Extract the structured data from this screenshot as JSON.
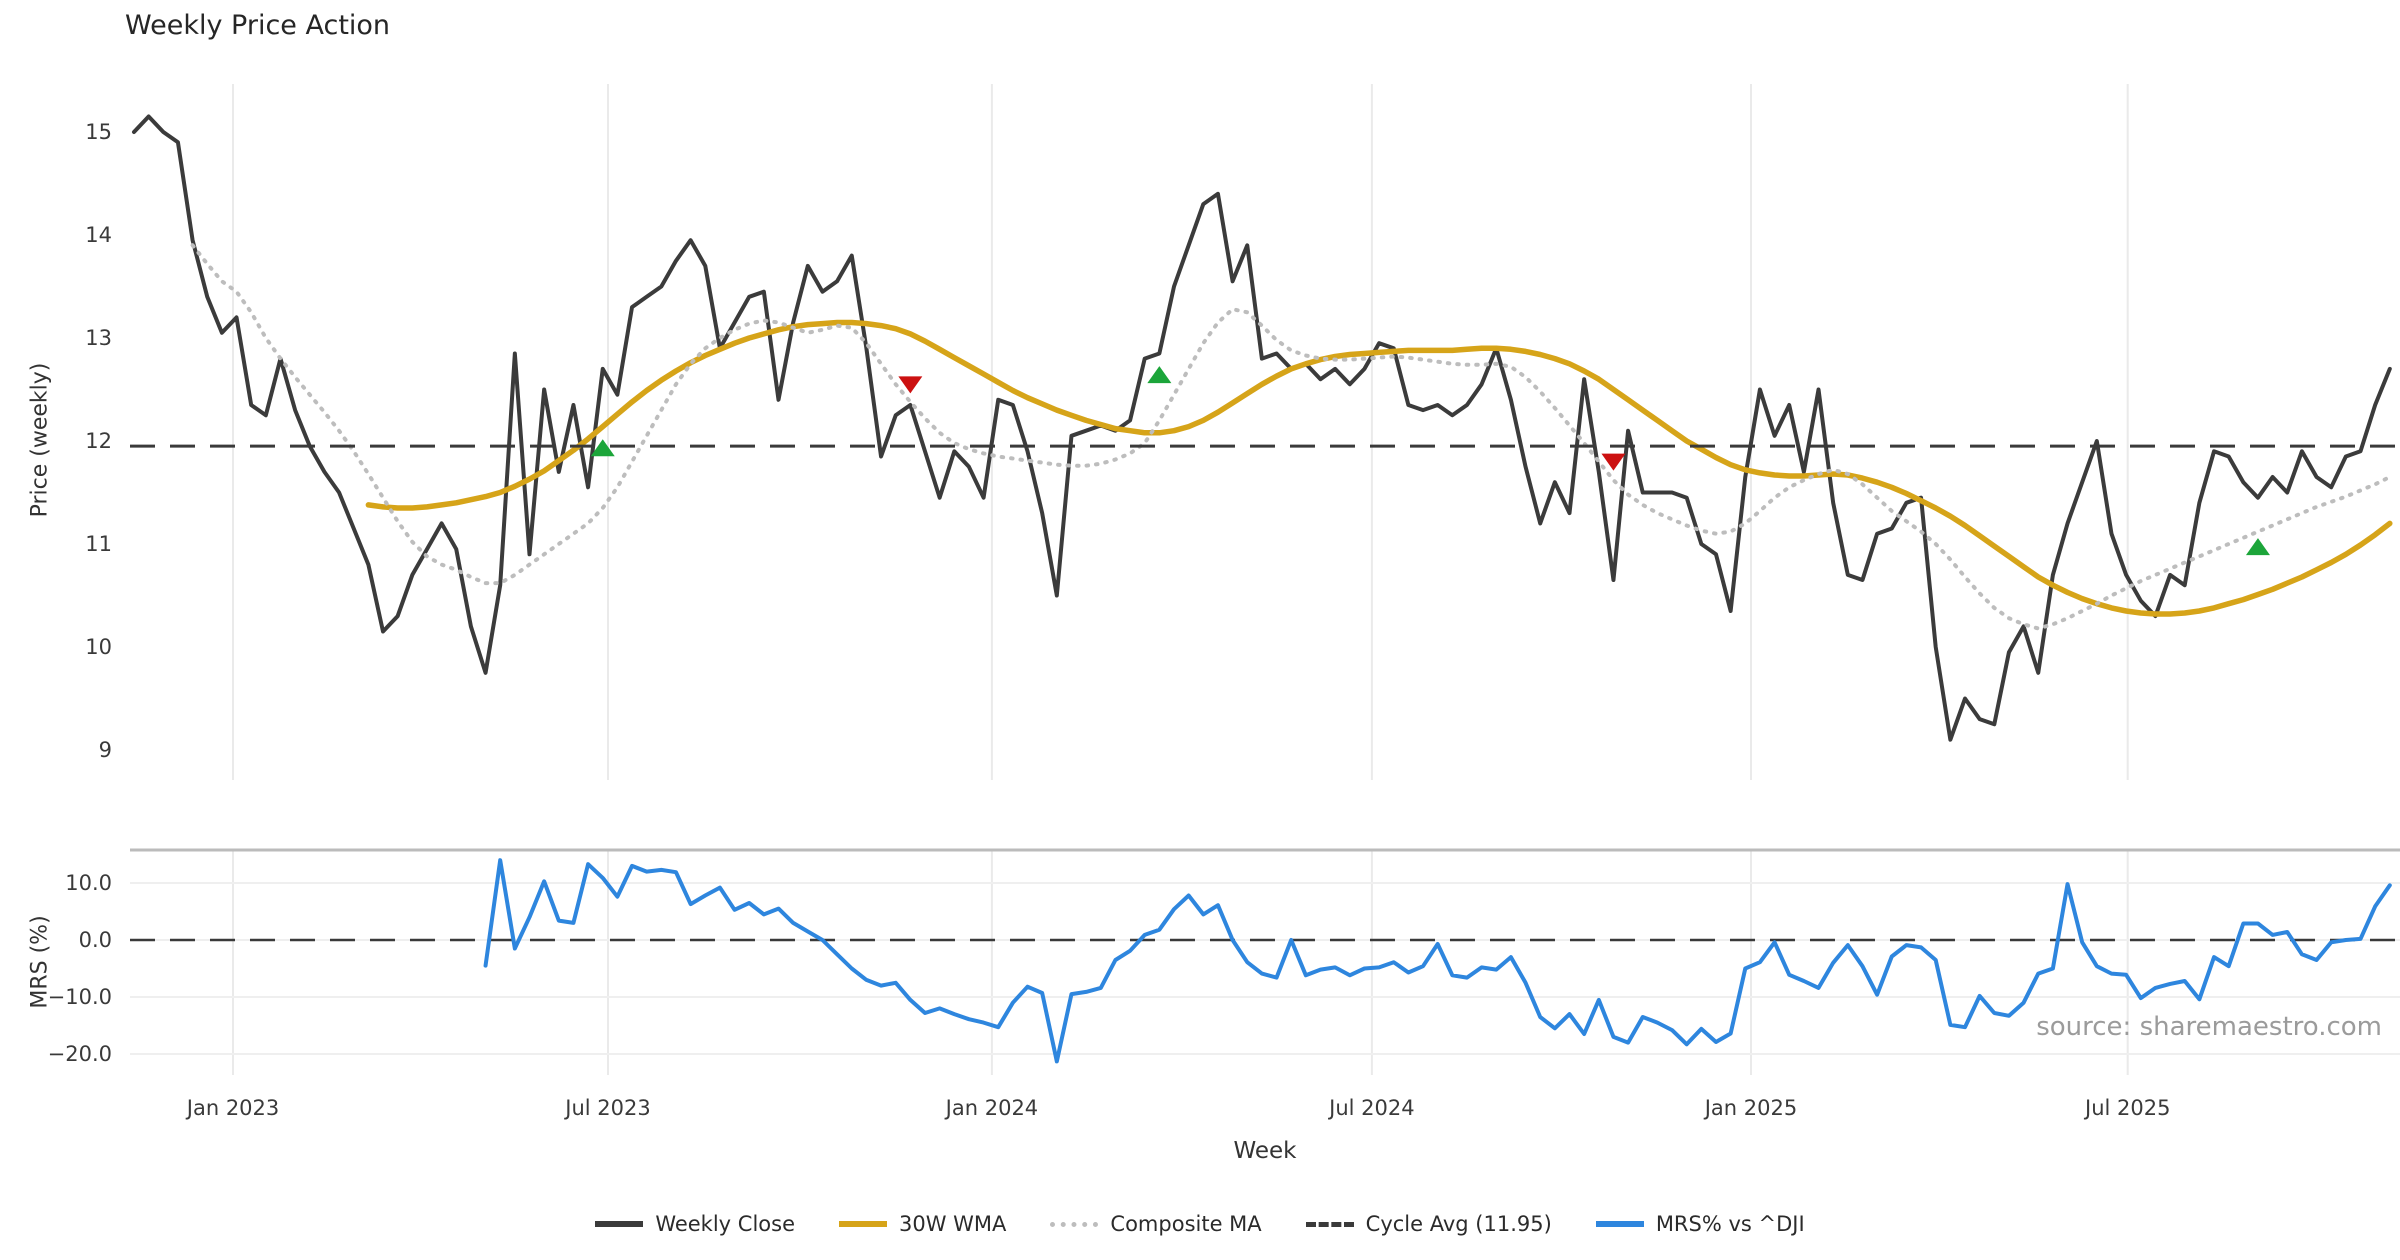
{
  "title": "Weekly Price Action",
  "source": "source: sharemaestro.com",
  "x_axis": {
    "label": "Week",
    "ticks": [
      {
        "label": "Jan 2023",
        "index": 6.76
      },
      {
        "label": "Jul 2023",
        "index": 32.36
      },
      {
        "label": "Jan 2024",
        "index": 58.57
      },
      {
        "label": "Jul 2024",
        "index": 84.51
      },
      {
        "label": "Jan 2025",
        "index": 110.39
      },
      {
        "label": "Jul 2025",
        "index": 136.11
      }
    ]
  },
  "legend": {
    "items": [
      {
        "label": "Weekly Close",
        "color": "#3b3b3b",
        "style": "solid"
      },
      {
        "label": "30W WMA",
        "color": "#d6a419",
        "style": "solid"
      },
      {
        "label": "Composite MA",
        "color": "#bdbdbd",
        "style": "dotted"
      },
      {
        "label": "Cycle Avg (11.95)",
        "color": "#3a3a3a",
        "style": "dashed"
      },
      {
        "label": "MRS% vs ^DJI",
        "color": "#2e86de",
        "style": "solid"
      }
    ]
  },
  "chart_data": [
    {
      "id": "price",
      "type": "line",
      "ylabel": "Price (weekly)",
      "ylim": [
        8.73,
        15.43
      ],
      "grid": "vertical-only",
      "y_ticks": [
        {
          "v": 15,
          "label": "15"
        },
        {
          "v": 14,
          "label": "14"
        },
        {
          "v": 13,
          "label": "13"
        },
        {
          "v": 12,
          "label": "12"
        },
        {
          "v": 11,
          "label": "11"
        },
        {
          "v": 10,
          "label": "10"
        },
        {
          "v": 9,
          "label": "9"
        }
      ],
      "series": [
        {
          "name": "Weekly Close",
          "color": "#3b3b3b",
          "style": "solid",
          "width": 4,
          "start_index": 0,
          "values": [
            15.0,
            15.15,
            15.0,
            14.9,
            13.95,
            13.4,
            13.05,
            13.2,
            12.35,
            12.25,
            12.8,
            12.3,
            11.95,
            11.7,
            11.5,
            11.15,
            10.8,
            10.15,
            10.3,
            10.7,
            10.95,
            11.2,
            10.95,
            10.2,
            9.75,
            10.6,
            12.85,
            10.9,
            12.5,
            11.7,
            12.35,
            11.55,
            12.7,
            12.45,
            13.3,
            13.4,
            13.5,
            13.75,
            13.95,
            13.7,
            12.9,
            13.15,
            13.4,
            13.45,
            12.4,
            13.15,
            13.7,
            13.45,
            13.55,
            13.8,
            12.9,
            11.85,
            12.25,
            12.35,
            11.9,
            11.45,
            11.9,
            11.75,
            11.45,
            12.4,
            12.35,
            11.9,
            11.3,
            10.5,
            12.05,
            12.1,
            12.15,
            12.1,
            12.2,
            12.8,
            12.85,
            13.5,
            13.9,
            14.3,
            14.4,
            13.55,
            13.9,
            12.8,
            12.85,
            12.7,
            12.75,
            12.6,
            12.7,
            12.55,
            12.7,
            12.95,
            12.9,
            12.35,
            12.3,
            12.35,
            12.25,
            12.35,
            12.55,
            12.9,
            12.4,
            11.75,
            11.2,
            11.6,
            11.3,
            12.6,
            11.7,
            10.65,
            12.1,
            11.5,
            11.5,
            11.5,
            11.45,
            11.0,
            10.9,
            10.35,
            11.65,
            12.5,
            12.05,
            12.35,
            11.7,
            12.5,
            11.4,
            10.7,
            10.65,
            11.1,
            11.15,
            11.4,
            11.45,
            10.0,
            9.1,
            9.5,
            9.3,
            9.25,
            9.95,
            10.2,
            9.75,
            10.7,
            11.2,
            11.6,
            12.0,
            11.1,
            10.7,
            10.45,
            10.3,
            10.7,
            10.6,
            11.4,
            11.9,
            11.85,
            11.6,
            11.45,
            11.65,
            11.5,
            11.9,
            11.65,
            11.55,
            11.85,
            11.9,
            12.35,
            12.7
          ]
        },
        {
          "name": "30W WMA",
          "color": "#d6a419",
          "style": "solid",
          "width": 5.5,
          "start_index": 16,
          "values": [
            11.38,
            11.36,
            11.35,
            11.35,
            11.36,
            11.38,
            11.4,
            11.43,
            11.46,
            11.5,
            11.56,
            11.63,
            11.71,
            11.81,
            11.91,
            12.02,
            12.14,
            12.26,
            12.38,
            12.49,
            12.59,
            12.68,
            12.76,
            12.83,
            12.89,
            12.95,
            13.0,
            13.04,
            13.08,
            13.11,
            13.13,
            13.14,
            13.15,
            13.15,
            13.14,
            13.12,
            13.09,
            13.04,
            12.97,
            12.89,
            12.81,
            12.73,
            12.65,
            12.57,
            12.49,
            12.42,
            12.36,
            12.3,
            12.25,
            12.2,
            12.16,
            12.12,
            12.1,
            12.08,
            12.08,
            12.1,
            12.14,
            12.2,
            12.28,
            12.37,
            12.46,
            12.55,
            12.63,
            12.7,
            12.75,
            12.79,
            12.82,
            12.84,
            12.85,
            12.86,
            12.87,
            12.88,
            12.88,
            12.88,
            12.88,
            12.89,
            12.9,
            12.9,
            12.89,
            12.87,
            12.84,
            12.8,
            12.75,
            12.68,
            12.6,
            12.5,
            12.4,
            12.3,
            12.2,
            12.1,
            12.0,
            11.92,
            11.84,
            11.77,
            11.72,
            11.69,
            11.67,
            11.66,
            11.66,
            11.67,
            11.68,
            11.67,
            11.64,
            11.6,
            11.55,
            11.49,
            11.42,
            11.35,
            11.27,
            11.18,
            11.08,
            10.98,
            10.88,
            10.78,
            10.68,
            10.6,
            10.53,
            10.47,
            10.42,
            10.38,
            10.35,
            10.33,
            10.32,
            10.32,
            10.33,
            10.35,
            10.38,
            10.42,
            10.46,
            10.51,
            10.56,
            10.62,
            10.68,
            10.75,
            10.82,
            10.9,
            10.99,
            11.09,
            11.2
          ]
        },
        {
          "name": "Composite MA",
          "color": "#bdbdbd",
          "style": "dotted",
          "width": 4,
          "start_index": 4,
          "values": [
            13.9,
            13.72,
            13.55,
            13.45,
            13.25,
            13.0,
            12.8,
            12.62,
            12.45,
            12.28,
            12.1,
            11.9,
            11.68,
            11.45,
            11.22,
            11.02,
            10.88,
            10.8,
            10.75,
            10.68,
            10.62,
            10.62,
            10.7,
            10.8,
            10.9,
            11.0,
            11.1,
            11.2,
            11.35,
            11.55,
            11.8,
            12.05,
            12.3,
            12.55,
            12.75,
            12.9,
            13.0,
            13.08,
            13.14,
            13.17,
            13.15,
            13.1,
            13.05,
            13.08,
            13.12,
            13.1,
            12.95,
            12.75,
            12.55,
            12.38,
            12.22,
            12.08,
            11.98,
            11.92,
            11.88,
            11.85,
            11.83,
            11.81,
            11.79,
            11.77,
            11.76,
            11.76,
            11.78,
            11.82,
            11.88,
            11.98,
            12.2,
            12.45,
            12.7,
            12.95,
            13.15,
            13.28,
            13.25,
            13.12,
            12.98,
            12.88,
            12.83,
            12.8,
            12.79,
            12.79,
            12.8,
            12.81,
            12.82,
            12.81,
            12.79,
            12.77,
            12.75,
            12.74,
            12.74,
            12.75,
            12.72,
            12.62,
            12.48,
            12.32,
            12.15,
            11.98,
            11.8,
            11.62,
            11.48,
            11.38,
            11.3,
            11.24,
            11.18,
            11.13,
            11.1,
            11.12,
            11.2,
            11.32,
            11.45,
            11.55,
            11.62,
            11.68,
            11.72,
            11.68,
            11.58,
            11.45,
            11.32,
            11.22,
            11.12,
            11.0,
            10.85,
            10.68,
            10.52,
            10.38,
            10.28,
            10.22,
            10.18,
            10.22,
            10.28,
            10.35,
            10.42,
            10.5,
            10.57,
            10.64,
            10.7,
            10.76,
            10.82,
            10.88,
            10.94,
            11.0,
            11.06,
            11.12,
            11.18,
            11.24,
            11.3,
            11.36,
            11.41,
            11.46,
            11.52,
            11.58,
            11.65
          ]
        },
        {
          "name": "Cycle Avg (11.95)",
          "color": "#3a3a3a",
          "style": "dashed",
          "width": 3,
          "constant": 11.95
        }
      ],
      "markers": {
        "buy_signals": {
          "shape": "triangle-up",
          "color": "#1ca53a",
          "points": [
            {
              "index": 32,
              "price": 11.93
            },
            {
              "index": 70,
              "price": 12.64
            },
            {
              "index": 145,
              "price": 10.97
            }
          ]
        },
        "sell_signals": {
          "shape": "triangle-down",
          "color": "#cc1111",
          "points": [
            {
              "index": 53,
              "price": 12.55
            },
            {
              "index": 101,
              "price": 11.8
            }
          ]
        }
      }
    },
    {
      "id": "mrs",
      "type": "line",
      "ylabel": "MRS (%)",
      "ylim": [
        -23.7,
        15.8
      ],
      "grid": "both",
      "y_ticks": [
        {
          "v": 10,
          "label": "10.0"
        },
        {
          "v": 0,
          "label": "0.0"
        },
        {
          "v": -10,
          "label": "−10.0"
        },
        {
          "v": -20,
          "label": "−20.0"
        }
      ],
      "series": [
        {
          "name": "MRS% vs ^DJI",
          "color": "#2e86de",
          "style": "solid",
          "width": 4,
          "start_index": 24,
          "values": [
            -4.5,
            14.0,
            -1.5,
            4.0,
            10.3,
            3.4,
            3.0,
            13.3,
            10.9,
            7.6,
            13.0,
            12.0,
            12.3,
            11.9,
            6.3,
            7.8,
            9.2,
            5.3,
            6.5,
            4.5,
            5.5,
            3.0,
            1.5,
            0.0,
            -2.5,
            -5.0,
            -7.0,
            -8.0,
            -7.5,
            -10.5,
            -12.8,
            -12.0,
            -13.0,
            -13.9,
            -14.5,
            -15.3,
            -11.0,
            -8.2,
            -9.3,
            -21.3,
            -9.5,
            -9.1,
            -8.4,
            -3.5,
            -1.9,
            0.9,
            1.8,
            5.4,
            7.8,
            4.5,
            6.1,
            0.0,
            -3.9,
            -5.9,
            -6.6,
            0.0,
            -6.2,
            -5.2,
            -4.8,
            -6.2,
            -5.0,
            -4.8,
            -3.9,
            -5.7,
            -4.6,
            -0.7,
            -6.2,
            -6.6,
            -4.8,
            -5.2,
            -3.0,
            -7.5,
            -13.5,
            -15.5,
            -13.0,
            -16.5,
            -10.5,
            -17.0,
            -18.0,
            -13.5,
            -14.5,
            -15.8,
            -18.3,
            -15.6,
            -17.9,
            -16.4,
            -5.0,
            -3.9,
            -0.4,
            -6.1,
            -7.2,
            -8.4,
            -4.0,
            -0.9,
            -4.6,
            -9.6,
            -2.9,
            -0.9,
            -1.3,
            -3.5,
            -14.9,
            -15.3,
            -9.8,
            -12.8,
            -13.3,
            -11.0,
            -5.9,
            -5.0,
            9.8,
            -0.4,
            -4.6,
            -5.9,
            -6.1,
            -10.2,
            -8.4,
            -7.7,
            -7.2,
            -10.4,
            -3.0,
            -4.6,
            2.9,
            2.9,
            0.9,
            1.4,
            -2.5,
            -3.5,
            -0.4,
            0.0,
            0.2,
            5.9,
            9.6
          ]
        },
        {
          "name": "Zero line",
          "color": "#3a3a3a",
          "style": "dashed",
          "width": 2.5,
          "constant": 0
        }
      ]
    }
  ]
}
